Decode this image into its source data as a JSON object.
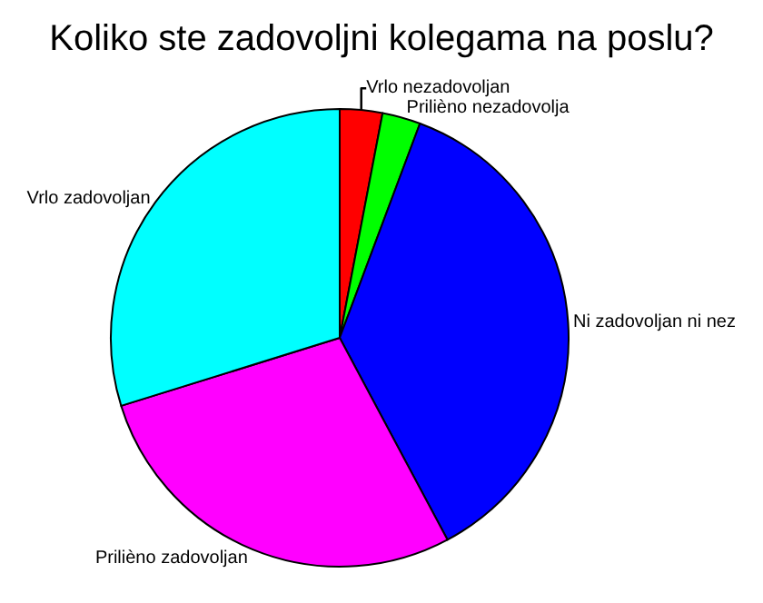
{
  "chart_data": {
    "type": "pie",
    "title": "Koliko ste zadovoljni kolegama na poslu?",
    "categories": [
      "Vrlo nezadovoljan",
      "Prilièno nezadovolja",
      "Ni zadovoljan ni nez",
      "Prilièno zadovoljan",
      "Vrlo zadovoljan"
    ],
    "values": [
      3,
      2.7,
      36.5,
      28,
      29.8
    ],
    "colors": [
      "#ff0000",
      "#00ff00",
      "#0000ff",
      "#ff00ff",
      "#00ffff"
    ],
    "legend": false
  }
}
